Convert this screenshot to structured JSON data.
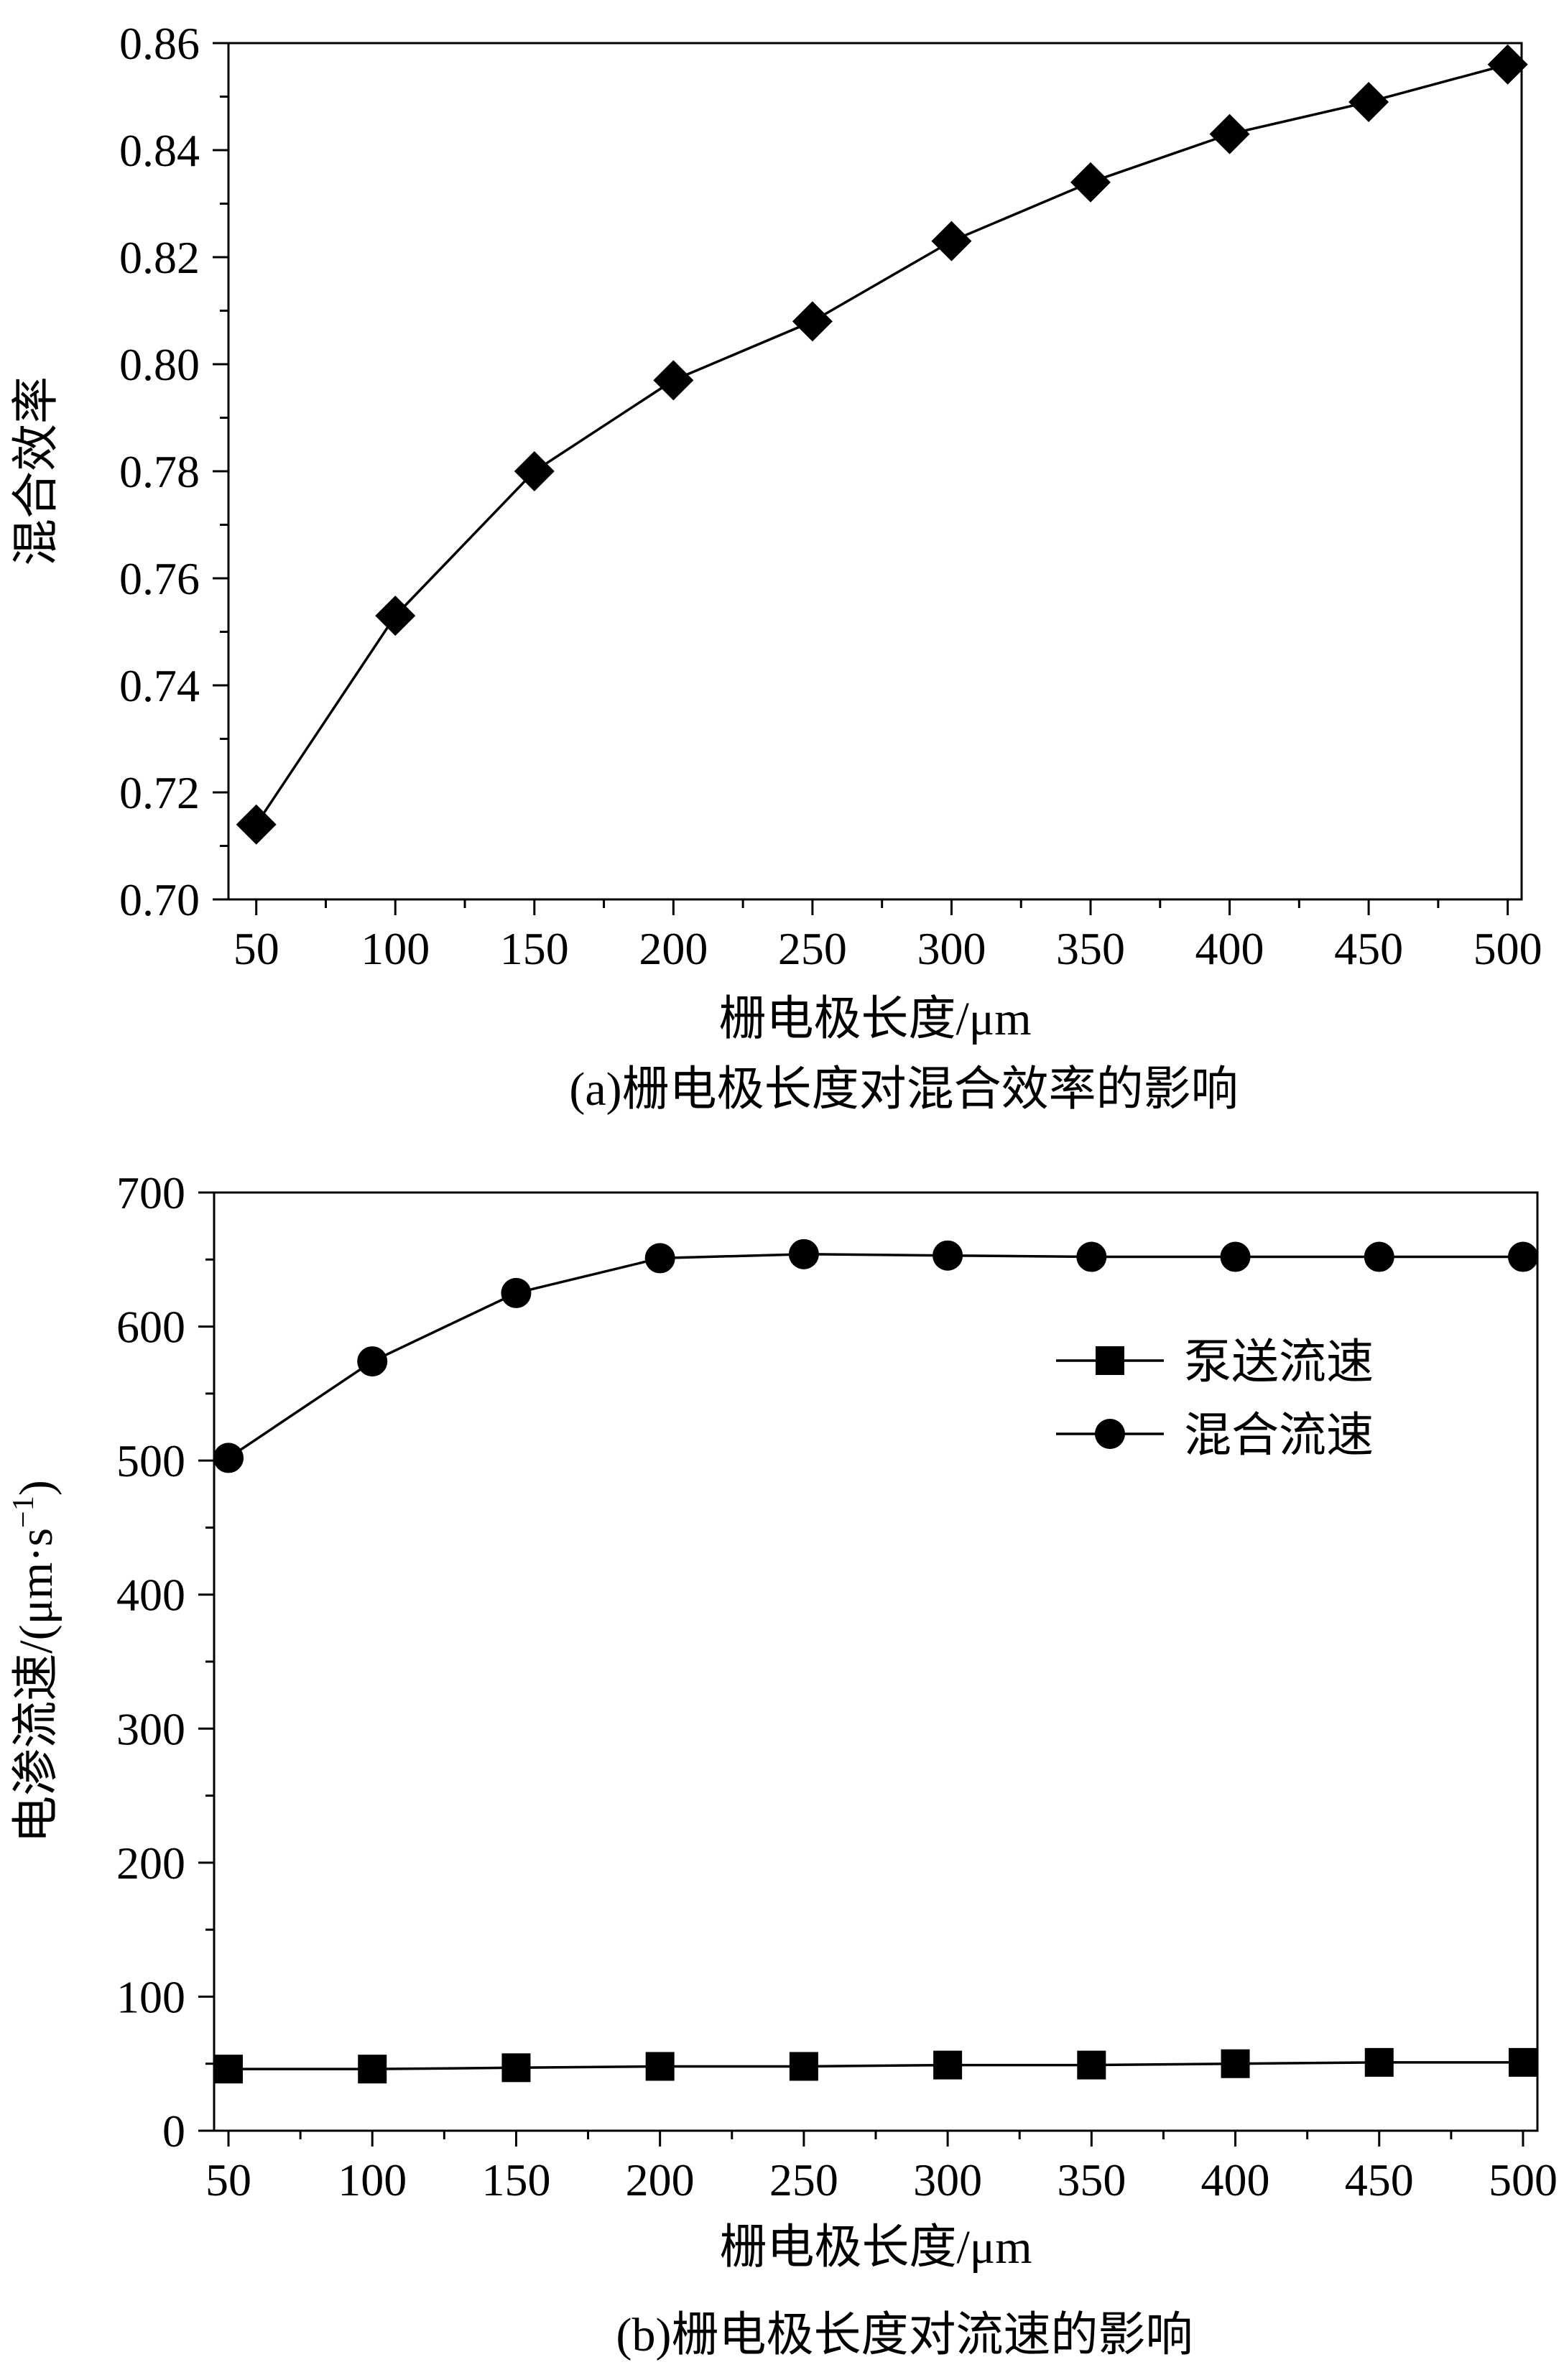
{
  "charts": [
    {
      "id": "a",
      "caption": "(a)栅电极长度对混合效率的影响",
      "chart_data": {
        "type": "line",
        "xlabel": "栅电极长度/μm",
        "ylabel": "混合效率",
        "x": [
          50,
          100,
          150,
          200,
          250,
          300,
          350,
          400,
          450,
          500
        ],
        "xlim": [
          40,
          505
        ],
        "ylim": [
          0.7,
          0.86
        ],
        "xticks": [
          "50",
          "100",
          "150",
          "200",
          "250",
          "300",
          "350",
          "400",
          "450",
          "500"
        ],
        "xtick_values": [
          50,
          100,
          150,
          200,
          250,
          300,
          350,
          400,
          450,
          500
        ],
        "yticks": [
          "0.70",
          "0.72",
          "0.74",
          "0.76",
          "0.78",
          "0.80",
          "0.82",
          "0.84",
          "0.86"
        ],
        "ytick_values": [
          0.7,
          0.72,
          0.74,
          0.76,
          0.78,
          0.8,
          0.82,
          0.84,
          0.86
        ],
        "grid": false,
        "series": [
          {
            "marker": "diamond",
            "values": [
              0.714,
              0.753,
              0.78,
              0.797,
              0.808,
              0.823,
              0.834,
              0.843,
              0.849,
              0.856
            ]
          }
        ]
      }
    },
    {
      "id": "b",
      "caption": "(b)栅电极长度对流速的影响",
      "chart_data": {
        "type": "line",
        "xlabel": "栅电极长度/μm",
        "ylabel": "电渗流速/(μm·s",
        "ylabel_sup": "−1",
        "ylabel_tail": ")",
        "x": [
          50,
          100,
          150,
          200,
          250,
          300,
          350,
          400,
          450,
          500
        ],
        "xlim": [
          45,
          505
        ],
        "ylim": [
          0,
          700
        ],
        "xticks": [
          "50",
          "100",
          "150",
          "200",
          "250",
          "300",
          "350",
          "400",
          "450",
          "500"
        ],
        "xtick_values": [
          50,
          100,
          150,
          200,
          250,
          300,
          350,
          400,
          450,
          500
        ],
        "yticks": [
          "0",
          "100",
          "200",
          "300",
          "400",
          "500",
          "600",
          "700"
        ],
        "ytick_values": [
          0,
          100,
          200,
          300,
          400,
          500,
          600,
          700
        ],
        "grid": false,
        "legend": "top-right",
        "series": [
          {
            "name": "泵送流速",
            "marker": "square",
            "values": [
              46,
              46,
              47,
              48,
              48,
              49,
              49,
              50,
              51,
              51
            ]
          },
          {
            "name": "混合流速",
            "marker": "circle",
            "values": [
              502,
              574,
              625,
              651,
              654,
              653,
              652,
              652,
              652,
              652
            ]
          }
        ]
      }
    }
  ]
}
